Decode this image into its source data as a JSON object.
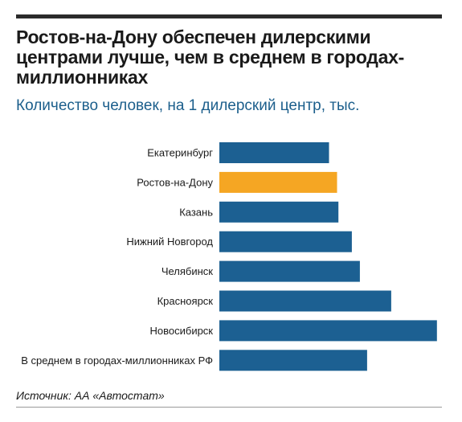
{
  "header": {
    "title": "Ростов-на-Дону обеспечен дилерскими центрами лучше, чем в среднем в городах-миллионниках",
    "subtitle": "Количество человек, на 1 дилерский центр, тыс."
  },
  "chart_data": {
    "type": "bar",
    "orientation": "horizontal",
    "categories": [
      "Екатеринбург",
      "Ростов-на-Дону",
      "Казань",
      "Нижний Новгород",
      "Челябинск",
      "Красноярск",
      "Новосибирск",
      "В среднем в городах-миллионниках РФ"
    ],
    "values": [
      24.5,
      26.3,
      26.6,
      29.6,
      31.4,
      38.4,
      48.6,
      33.0
    ],
    "highlight_index": 1,
    "title": "Ростов-на-Дону обеспечен дилерскими центрами лучше, чем в среднем в городах-миллионниках",
    "subtitle": "Количество человек, на 1 дилерский центр, тыс.",
    "xlabel": "",
    "ylabel": "",
    "xlim": [
      0,
      49
    ],
    "grid": false,
    "legend": "none"
  },
  "colors": {
    "bar": "#1c6092",
    "highlight": "#f5a623",
    "subtitle": "#1c5f8c"
  },
  "footer": {
    "source": "Источник: АА «Автостат»"
  }
}
